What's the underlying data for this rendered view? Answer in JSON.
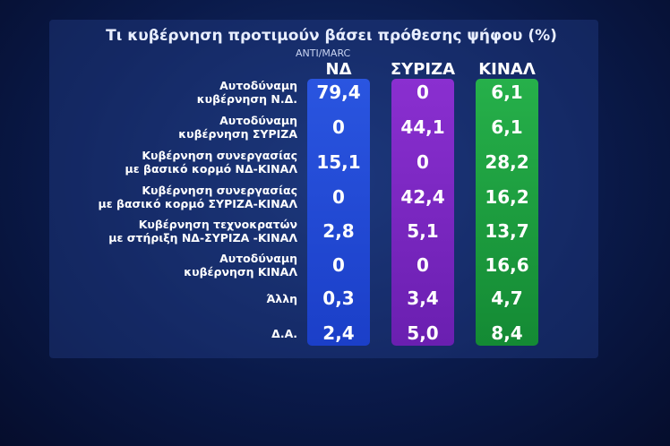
{
  "header": {
    "title": "Τι κυβέρνηση προτιμούν βάσει πρόθεσης ψήφου (%)",
    "source": "ANTI/MARC"
  },
  "table": {
    "columns": [
      "ΝΔ",
      "ΣΥΡΙΖΑ",
      "ΚΙΝΑΛ"
    ],
    "rows": [
      {
        "label": [
          "Αυτοδύναμη",
          "κυβέρνηση Ν.Δ."
        ],
        "cells": [
          "79,4",
          "0",
          "6,1"
        ]
      },
      {
        "label": [
          "Αυτοδύναμη",
          "κυβέρνηση ΣΥΡΙΖΑ"
        ],
        "cells": [
          "0",
          "44,1",
          "6,1"
        ]
      },
      {
        "label": [
          "Κυβέρνηση συνεργασίας",
          "με βασικό κορμό ΝΔ-ΚΙΝΑΛ"
        ],
        "cells": [
          "15,1",
          "0",
          "28,2"
        ]
      },
      {
        "label": [
          "Κυβέρνηση συνεργασίας",
          "με βασικό κορμό ΣΥΡΙΖΑ-ΚΙΝΑΛ"
        ],
        "cells": [
          "0",
          "42,4",
          "16,2"
        ]
      },
      {
        "label": [
          "Κυβέρνηση τεχνοκρατών",
          "με στήριξη ΝΔ-ΣΥΡΙΖΑ -ΚΙΝΑΛ"
        ],
        "cells": [
          "2,8",
          "5,1",
          "13,7"
        ]
      },
      {
        "label": [
          "Αυτοδύναμη",
          "κυβέρνηση ΚΙΝΑΛ"
        ],
        "cells": [
          "0",
          "0",
          "16,6"
        ]
      },
      {
        "label": [
          "Άλλη"
        ],
        "cells": [
          "0,3",
          "3,4",
          "4,7"
        ]
      },
      {
        "label": [
          "Δ.Α."
        ],
        "cells": [
          "2,4",
          "5,0",
          "8,4"
        ]
      }
    ]
  }
}
